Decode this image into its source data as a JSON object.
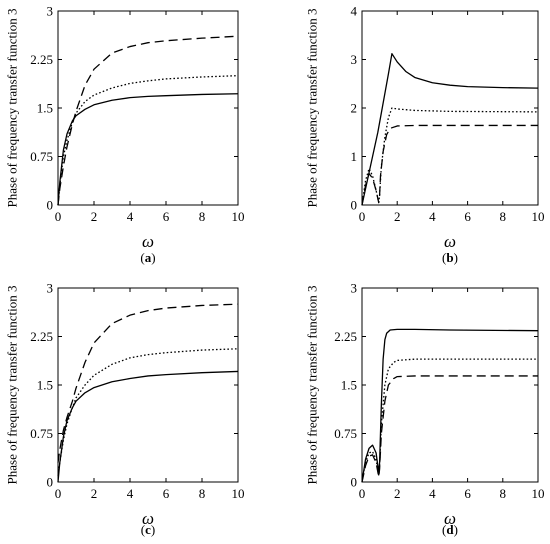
{
  "chart_data": [
    {
      "panel": "a",
      "type": "line",
      "ylabel": "Phase of frequency transfer function 3",
      "xlabel": "ω",
      "caption": {
        "open": "(",
        "letter": "a",
        "close": ")"
      },
      "xlim": [
        0,
        10
      ],
      "ylim": [
        0,
        3
      ],
      "xticks": [
        "0",
        "2",
        "4",
        "6",
        "8",
        "10"
      ],
      "yticks": [
        "0",
        "0.75",
        "1.5",
        "2.25",
        "3"
      ],
      "series": [
        {
          "style": "solid",
          "x": [
            0,
            0.1,
            0.3,
            0.5,
            0.8,
            1,
            1.5,
            2,
            3,
            4,
            5,
            6,
            8,
            10
          ],
          "y": [
            0,
            0.35,
            0.85,
            1.1,
            1.3,
            1.38,
            1.48,
            1.55,
            1.62,
            1.66,
            1.68,
            1.69,
            1.71,
            1.72
          ]
        },
        {
          "style": "dotted",
          "x": [
            0,
            0.1,
            0.3,
            0.5,
            0.8,
            1,
            1.5,
            2,
            3,
            4,
            5,
            6,
            8,
            10
          ],
          "y": [
            0,
            0.3,
            0.75,
            1.0,
            1.28,
            1.42,
            1.6,
            1.7,
            1.81,
            1.88,
            1.92,
            1.95,
            1.98,
            2.0
          ]
        },
        {
          "style": "dashed",
          "x": [
            0,
            0.1,
            0.3,
            0.5,
            0.8,
            1,
            1.5,
            2,
            3,
            4,
            5,
            6,
            8,
            10
          ],
          "y": [
            0,
            0.25,
            0.6,
            0.9,
            1.25,
            1.45,
            1.85,
            2.1,
            2.35,
            2.45,
            2.51,
            2.54,
            2.58,
            2.61
          ]
        }
      ]
    },
    {
      "panel": "b",
      "type": "line",
      "ylabel": "Phase of frequency transfer function 3",
      "xlabel": "ω",
      "caption": {
        "open": "(",
        "letter": "b",
        "close": ")"
      },
      "xlim": [
        0,
        10
      ],
      "ylim": [
        0,
        4
      ],
      "xticks": [
        "0",
        "2",
        "4",
        "6",
        "8",
        "10"
      ],
      "yticks": [
        "0",
        "1",
        "2",
        "3",
        "4"
      ],
      "series": [
        {
          "style": "solid",
          "x": [
            0,
            0.3,
            0.6,
            0.9,
            1.2,
            1.5,
            1.7,
            2,
            2.5,
            3,
            4,
            5,
            6,
            8,
            10
          ],
          "y": [
            0,
            0.5,
            1.0,
            1.5,
            2.1,
            2.7,
            3.12,
            2.95,
            2.75,
            2.63,
            2.52,
            2.47,
            2.44,
            2.42,
            2.41
          ]
        },
        {
          "style": "dotted",
          "x": [
            0,
            0.2,
            0.4,
            0.6,
            0.8,
            0.95,
            1,
            1.1,
            1.3,
            1.5,
            1.7,
            2,
            3,
            5,
            10
          ],
          "y": [
            0,
            0.5,
            0.75,
            0.6,
            0.3,
            0.05,
            0.2,
            0.8,
            1.4,
            1.8,
            2.0,
            1.98,
            1.95,
            1.93,
            1.92
          ]
        },
        {
          "style": "dashed",
          "x": [
            0,
            0.2,
            0.4,
            0.6,
            0.8,
            0.95,
            1,
            1.05,
            1.2,
            1.4,
            1.6,
            2,
            3,
            5,
            10
          ],
          "y": [
            0,
            0.4,
            0.65,
            0.55,
            0.3,
            0.05,
            0.2,
            0.6,
            1.1,
            1.45,
            1.58,
            1.63,
            1.64,
            1.64,
            1.64
          ]
        }
      ]
    },
    {
      "panel": "c",
      "type": "line",
      "ylabel": "Phase of frequency transfer function 3",
      "xlabel": "ω",
      "caption": {
        "open": "(",
        "letter": "c",
        "close": ")"
      },
      "xlim": [
        0,
        10
      ],
      "ylim": [
        0,
        3
      ],
      "xticks": [
        "0",
        "2",
        "4",
        "6",
        "8",
        "10"
      ],
      "yticks": [
        "0",
        "0.75",
        "1.5",
        "2.25",
        "3"
      ],
      "series": [
        {
          "style": "solid",
          "x": [
            0,
            0.1,
            0.3,
            0.5,
            0.8,
            1,
            1.5,
            2,
            3,
            4,
            5,
            6,
            8,
            10
          ],
          "y": [
            0,
            0.3,
            0.7,
            0.95,
            1.15,
            1.25,
            1.38,
            1.46,
            1.55,
            1.6,
            1.64,
            1.66,
            1.69,
            1.71
          ]
        },
        {
          "style": "dotted",
          "x": [
            0,
            0.1,
            0.3,
            0.5,
            0.8,
            1,
            1.5,
            2,
            3,
            4,
            5,
            6,
            8,
            10
          ],
          "y": [
            0.1,
            0.3,
            0.65,
            0.9,
            1.15,
            1.3,
            1.5,
            1.65,
            1.82,
            1.92,
            1.97,
            2.0,
            2.04,
            2.06
          ]
        },
        {
          "style": "dashed",
          "x": [
            0,
            0.1,
            0.3,
            0.5,
            0.8,
            1,
            1.5,
            2,
            3,
            4,
            5,
            6,
            8,
            10
          ],
          "y": [
            0.3,
            0.5,
            0.8,
            1.0,
            1.25,
            1.45,
            1.85,
            2.15,
            2.45,
            2.58,
            2.65,
            2.69,
            2.73,
            2.75
          ]
        }
      ]
    },
    {
      "panel": "d",
      "type": "line",
      "ylabel": "Phase of frequency transfer function 3",
      "xlabel": "ω",
      "caption": {
        "open": "(",
        "letter": "d",
        "close": ")"
      },
      "xlim": [
        0,
        10
      ],
      "ylim": [
        0,
        3
      ],
      "xticks": [
        "0",
        "2",
        "4",
        "6",
        "8",
        "10"
      ],
      "yticks": [
        "0",
        "0.75",
        "1.5",
        "2.25",
        "3"
      ],
      "series": [
        {
          "style": "solid",
          "x": [
            0,
            0.2,
            0.4,
            0.6,
            0.8,
            0.95,
            1,
            1.1,
            1.2,
            1.3,
            1.4,
            1.6,
            2,
            3,
            5,
            10
          ],
          "y": [
            0,
            0.35,
            0.52,
            0.57,
            0.45,
            0.15,
            0.3,
            1.2,
            1.9,
            2.2,
            2.3,
            2.35,
            2.36,
            2.36,
            2.35,
            2.34
          ]
        },
        {
          "style": "dotted",
          "x": [
            0,
            0.2,
            0.4,
            0.6,
            0.8,
            0.95,
            1,
            1.1,
            1.3,
            1.5,
            1.8,
            2,
            3,
            5,
            10
          ],
          "y": [
            0,
            0.3,
            0.45,
            0.47,
            0.35,
            0.1,
            0.25,
            0.9,
            1.5,
            1.75,
            1.85,
            1.88,
            1.9,
            1.9,
            1.9
          ]
        },
        {
          "style": "dashed",
          "x": [
            0,
            0.2,
            0.4,
            0.6,
            0.8,
            0.95,
            1,
            1.1,
            1.3,
            1.5,
            1.8,
            2,
            3,
            5,
            10
          ],
          "y": [
            0,
            0.25,
            0.4,
            0.42,
            0.3,
            0.08,
            0.2,
            0.75,
            1.25,
            1.5,
            1.6,
            1.63,
            1.64,
            1.64,
            1.64
          ]
        }
      ]
    }
  ]
}
